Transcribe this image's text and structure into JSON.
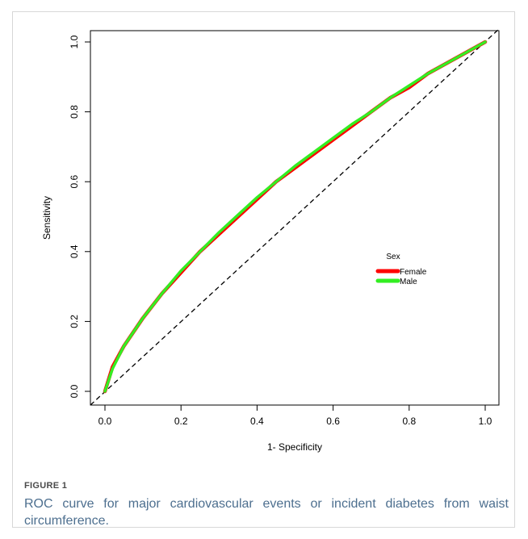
{
  "figure": {
    "label": "FIGURE 1",
    "caption": "ROC curve for major cardiovascular events or incident diabetes from waist circumference."
  },
  "colors": {
    "female": "#ff0000",
    "male": "#33ee22",
    "reference": "#000000",
    "caption": "#4d6f8f"
  },
  "chart_data": {
    "type": "line",
    "title": "",
    "xlabel": "1- Specificity",
    "ylabel": "Sensitivity",
    "xlim": [
      0,
      1
    ],
    "ylim": [
      0,
      1
    ],
    "xticks": [
      "0.0",
      "0.2",
      "0.4",
      "0.6",
      "0.8",
      "1.0"
    ],
    "yticks": [
      "0.0",
      "0.2",
      "0.4",
      "0.6",
      "0.8",
      "1.0"
    ],
    "grid": false,
    "legend": {
      "title": "Sex",
      "position": "center-right",
      "entries": [
        "Female",
        "Male"
      ]
    },
    "reference_line": {
      "style": "dashed",
      "from": [
        0,
        0
      ],
      "to": [
        1,
        1
      ]
    },
    "series": [
      {
        "name": "Female",
        "color": "#ff0000",
        "x": [
          0,
          0.02,
          0.05,
          0.1,
          0.15,
          0.2,
          0.25,
          0.3,
          0.35,
          0.4,
          0.45,
          0.5,
          0.55,
          0.6,
          0.65,
          0.7,
          0.75,
          0.8,
          0.85,
          0.9,
          0.95,
          1.0
        ],
        "y": [
          0,
          0.07,
          0.13,
          0.21,
          0.28,
          0.34,
          0.4,
          0.45,
          0.5,
          0.55,
          0.6,
          0.64,
          0.68,
          0.72,
          0.76,
          0.8,
          0.84,
          0.87,
          0.91,
          0.94,
          0.97,
          1.0
        ]
      },
      {
        "name": "Male",
        "color": "#33ee22",
        "x": [
          0,
          0.02,
          0.05,
          0.1,
          0.15,
          0.2,
          0.25,
          0.3,
          0.35,
          0.4,
          0.45,
          0.5,
          0.55,
          0.6,
          0.65,
          0.7,
          0.75,
          0.8,
          0.85,
          0.9,
          0.95,
          1.0
        ],
        "y": [
          0,
          0.065,
          0.13,
          0.21,
          0.28,
          0.345,
          0.4,
          0.455,
          0.505,
          0.555,
          0.6,
          0.645,
          0.685,
          0.725,
          0.765,
          0.8,
          0.84,
          0.875,
          0.91,
          0.94,
          0.97,
          1.0
        ]
      }
    ]
  }
}
